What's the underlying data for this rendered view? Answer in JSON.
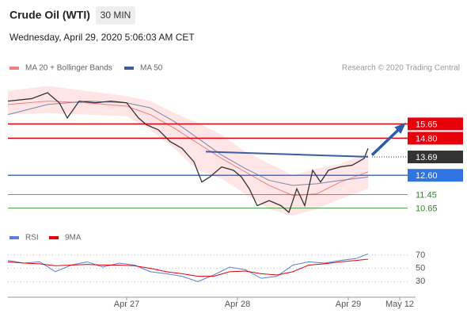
{
  "header": {
    "title": "Crude Oil (WTI)",
    "interval": "30 MIN",
    "date": "Wednesday, April 29, 2020 5:06:03 AM CET"
  },
  "chart_data": [
    {
      "type": "line",
      "source": "Research © 2020 Trading Central",
      "xlim": [
        0,
        101
      ],
      "xticks": [
        {
          "value": 30,
          "label": "Apr 27"
        },
        {
          "value": 58,
          "label": "Apr 28"
        },
        {
          "value": 86,
          "label": "Apr 29"
        },
        {
          "value": 99,
          "label": "May 12"
        }
      ],
      "ylim": [
        9.6,
        18.3
      ],
      "price": {
        "color": "#333333",
        "x": [
          0,
          6,
          10,
          13,
          15,
          18,
          22,
          26,
          30,
          33,
          35,
          38,
          41,
          44,
          47,
          49,
          51,
          54,
          57,
          59,
          61,
          63,
          66,
          69,
          71,
          73,
          75,
          77,
          79,
          81,
          84,
          87,
          90,
          91
        ],
        "values": [
          17.0,
          17.15,
          17.5,
          16.9,
          16.0,
          17.0,
          16.9,
          17.0,
          16.9,
          16.0,
          15.6,
          15.3,
          14.6,
          14.2,
          13.4,
          12.2,
          12.5,
          13.1,
          12.9,
          12.5,
          11.8,
          10.8,
          11.1,
          10.8,
          10.4,
          11.8,
          10.8,
          12.9,
          12.2,
          12.9,
          13.1,
          13.2,
          13.6,
          14.2
        ]
      },
      "ma20": {
        "name": "MA 20 + Bollinger Bands",
        "color": "#f08080",
        "band_color": "#ffd4d4",
        "x": [
          0,
          10,
          20,
          30,
          36,
          42,
          48,
          54,
          60,
          66,
          72,
          78,
          84,
          91
        ],
        "values": [
          16.8,
          17.0,
          16.9,
          16.7,
          16.2,
          15.4,
          14.5,
          13.6,
          12.8,
          12.0,
          11.4,
          11.5,
          12.2,
          12.8
        ],
        "upper": [
          17.6,
          17.9,
          17.6,
          17.3,
          17.0,
          16.3,
          15.7,
          15.0,
          14.0,
          13.3,
          12.6,
          13.0,
          13.3,
          13.9
        ],
        "lower": [
          16.2,
          16.3,
          16.2,
          16.1,
          15.3,
          14.2,
          12.9,
          12.4,
          11.5,
          10.6,
          10.2,
          10.6,
          11.2,
          11.8
        ]
      },
      "ma50": {
        "name": "MA 50",
        "color": "#3a5fa0",
        "x": [
          0,
          10,
          20,
          30,
          36,
          42,
          48,
          54,
          60,
          66,
          72,
          78,
          84,
          91
        ],
        "values": [
          16.2,
          16.8,
          17.0,
          16.9,
          16.6,
          15.8,
          14.8,
          13.8,
          13.0,
          12.3,
          12.0,
          12.1,
          12.3,
          12.5
        ]
      },
      "levels": [
        {
          "value": 15.65,
          "color": "#e8000b",
          "boxed": true
        },
        {
          "value": 14.8,
          "label": "14.80",
          "color": "#e8000b",
          "boxed": true
        },
        {
          "value": 13.69,
          "color": "#333333",
          "boxed": true,
          "dotted": true
        },
        {
          "value": 12.6,
          "label": "12.60",
          "color": "#2f74e0",
          "boxed": true
        },
        {
          "value": 11.45,
          "color": "#2e8b2e",
          "boxed": false
        },
        {
          "value": 10.65,
          "color": "#2e8b2e",
          "boxed": false
        }
      ],
      "trendline": {
        "color": "#3a5fa0",
        "x": [
          50,
          91
        ],
        "values": [
          14.0,
          13.7
        ]
      },
      "arrow": {
        "color": "#2a5caa",
        "x": [
          92,
          100
        ],
        "values": [
          13.8,
          15.6
        ]
      }
    },
    {
      "type": "line",
      "xlim": [
        0,
        101
      ],
      "ylim": [
        10,
        82
      ],
      "yticks": [
        70,
        50,
        30
      ],
      "series": [
        {
          "name": "RSI",
          "color": "#5a7fd6",
          "x": [
            0,
            4,
            8,
            12,
            16,
            20,
            24,
            28,
            32,
            36,
            40,
            44,
            48,
            52,
            56,
            60,
            64,
            68,
            72,
            76,
            80,
            84,
            88,
            91
          ],
          "values": [
            62,
            58,
            60,
            45,
            55,
            60,
            52,
            58,
            55,
            45,
            42,
            38,
            30,
            40,
            52,
            48,
            35,
            38,
            55,
            60,
            58,
            62,
            65,
            72
          ]
        },
        {
          "name": "9MA",
          "color": "#e8000b",
          "x": [
            0,
            4,
            8,
            12,
            16,
            20,
            24,
            28,
            32,
            36,
            40,
            44,
            48,
            52,
            56,
            60,
            64,
            68,
            72,
            76,
            80,
            84,
            88,
            91
          ],
          "values": [
            60,
            58,
            57,
            54,
            55,
            56,
            55,
            55,
            54,
            50,
            45,
            42,
            38,
            38,
            45,
            46,
            42,
            40,
            45,
            55,
            57,
            60,
            62,
            64
          ]
        }
      ]
    }
  ]
}
